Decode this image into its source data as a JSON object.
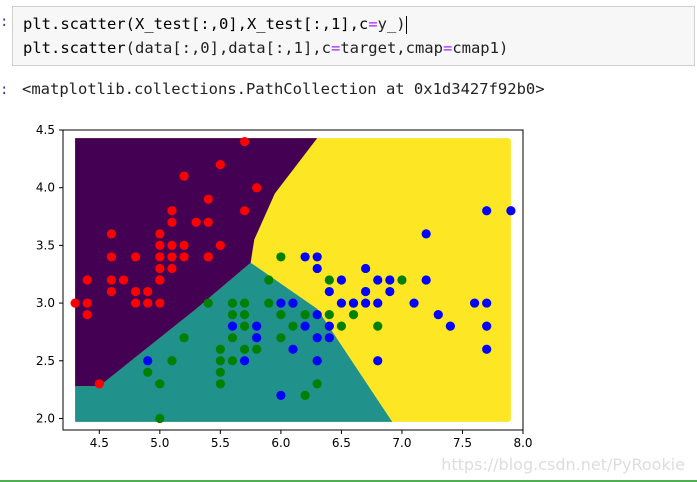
{
  "prompt_in": ":",
  "prompt_out": ":",
  "code": {
    "line1": {
      "fn": "plt.scatter",
      "args": "(X_test[:,0],X_test[:,1],c",
      "eq": "=",
      "tail": "y_)"
    },
    "line2": {
      "fn": "plt.scatter",
      "args": "(data[:,0],data[:,1],c",
      "eq": "=",
      "tail1": "target,cmap",
      "eq2": "=",
      "tail2": "cmap1)"
    }
  },
  "output_text": "<matplotlib.collections.PathCollection at 0x1d3427f92b0>",
  "watermark": "https://blog.csdn.net/PyRookie",
  "colors": {
    "region_purple": "#440154",
    "region_teal": "#21918c",
    "region_yellow": "#fde725",
    "class_red": "#ff0000",
    "class_green": "#008000",
    "class_blue": "#0000ff"
  },
  "chart_data": {
    "type": "scatter",
    "title": "",
    "xlabel": "",
    "ylabel": "",
    "xlim": [
      4.2,
      8.0
    ],
    "ylim": [
      1.9,
      4.5
    ],
    "xticks": [
      "4.5",
      "5.0",
      "5.5",
      "6.0",
      "6.5",
      "7.0",
      "7.5",
      "8.0"
    ],
    "yticks": [
      "2.0",
      "2.5",
      "3.0",
      "3.5",
      "4.0",
      "4.5"
    ],
    "grid": false,
    "background_regions": [
      {
        "class": 0,
        "color": "#440154",
        "label": "purple region (upper-left)"
      },
      {
        "class": 1,
        "color": "#21918c",
        "label": "teal region (lower-middle)"
      },
      {
        "class": 2,
        "color": "#fde725",
        "label": "yellow region (right)"
      }
    ],
    "series": [
      {
        "color": "#ff0000",
        "points": [
          [
            4.3,
            3.0
          ],
          [
            4.4,
            3.0
          ],
          [
            4.4,
            2.9
          ],
          [
            4.4,
            3.2
          ],
          [
            4.5,
            2.3
          ],
          [
            4.6,
            3.1
          ],
          [
            4.6,
            3.4
          ],
          [
            4.6,
            3.6
          ],
          [
            4.6,
            3.2
          ],
          [
            4.7,
            3.2
          ],
          [
            4.8,
            3.0
          ],
          [
            4.8,
            3.4
          ],
          [
            4.8,
            3.1
          ],
          [
            4.9,
            3.0
          ],
          [
            4.9,
            3.1
          ],
          [
            5.0,
            3.0
          ],
          [
            5.0,
            3.6
          ],
          [
            5.0,
            3.4
          ],
          [
            5.0,
            3.5
          ],
          [
            5.0,
            3.2
          ],
          [
            5.0,
            3.3
          ],
          [
            5.1,
            3.5
          ],
          [
            5.1,
            3.8
          ],
          [
            5.1,
            3.4
          ],
          [
            5.1,
            3.7
          ],
          [
            5.1,
            3.3
          ],
          [
            5.2,
            3.5
          ],
          [
            5.2,
            3.4
          ],
          [
            5.2,
            4.1
          ],
          [
            5.3,
            3.7
          ],
          [
            5.4,
            3.9
          ],
          [
            5.4,
            3.7
          ],
          [
            5.4,
            3.4
          ],
          [
            5.5,
            4.2
          ],
          [
            5.5,
            3.5
          ],
          [
            5.7,
            4.4
          ],
          [
            5.7,
            3.8
          ],
          [
            5.8,
            4.0
          ],
          [
            5.4,
            3.4
          ],
          [
            5.0,
            3.2
          ]
        ]
      },
      {
        "color": "#008000",
        "points": [
          [
            4.9,
            2.4
          ],
          [
            5.0,
            2.0
          ],
          [
            5.0,
            2.3
          ],
          [
            5.1,
            2.5
          ],
          [
            5.2,
            2.7
          ],
          [
            5.4,
            3.0
          ],
          [
            5.5,
            2.3
          ],
          [
            5.5,
            2.4
          ],
          [
            5.5,
            2.5
          ],
          [
            5.5,
            2.6
          ],
          [
            5.6,
            2.9
          ],
          [
            5.6,
            3.0
          ],
          [
            5.6,
            2.7
          ],
          [
            5.6,
            2.5
          ],
          [
            5.7,
            2.6
          ],
          [
            5.7,
            2.8
          ],
          [
            5.7,
            3.0
          ],
          [
            5.7,
            2.9
          ],
          [
            5.8,
            2.7
          ],
          [
            5.8,
            2.6
          ],
          [
            5.9,
            3.0
          ],
          [
            5.9,
            3.2
          ],
          [
            6.0,
            2.9
          ],
          [
            6.0,
            2.7
          ],
          [
            6.0,
            3.4
          ],
          [
            6.1,
            2.8
          ],
          [
            6.1,
            3.0
          ],
          [
            6.2,
            2.9
          ],
          [
            6.2,
            2.2
          ],
          [
            6.3,
            2.3
          ],
          [
            6.3,
            2.5
          ],
          [
            6.4,
            2.9
          ],
          [
            6.4,
            3.2
          ],
          [
            6.5,
            2.8
          ],
          [
            6.6,
            3.0
          ],
          [
            6.6,
            2.9
          ],
          [
            6.7,
            3.1
          ],
          [
            6.8,
            2.8
          ],
          [
            7.0,
            3.2
          ]
        ]
      },
      {
        "color": "#0000ff",
        "points": [
          [
            4.9,
            2.5
          ],
          [
            5.6,
            2.8
          ],
          [
            5.7,
            2.5
          ],
          [
            5.8,
            2.8
          ],
          [
            5.8,
            2.7
          ],
          [
            6.0,
            2.2
          ],
          [
            6.0,
            3.0
          ],
          [
            6.1,
            3.0
          ],
          [
            6.1,
            2.6
          ],
          [
            6.2,
            2.8
          ],
          [
            6.2,
            3.4
          ],
          [
            6.3,
            3.3
          ],
          [
            6.3,
            2.9
          ],
          [
            6.3,
            2.7
          ],
          [
            6.3,
            2.5
          ],
          [
            6.3,
            3.4
          ],
          [
            6.4,
            2.8
          ],
          [
            6.4,
            3.1
          ],
          [
            6.4,
            2.7
          ],
          [
            6.5,
            3.0
          ],
          [
            6.5,
            3.2
          ],
          [
            6.7,
            3.3
          ],
          [
            6.7,
            3.0
          ],
          [
            6.7,
            3.1
          ],
          [
            6.8,
            3.0
          ],
          [
            6.8,
            3.2
          ],
          [
            6.9,
            3.1
          ],
          [
            6.9,
            3.2
          ],
          [
            7.1,
            3.0
          ],
          [
            7.2,
            3.6
          ],
          [
            7.2,
            3.2
          ],
          [
            7.3,
            2.9
          ],
          [
            7.4,
            2.8
          ],
          [
            7.6,
            3.0
          ],
          [
            7.7,
            3.8
          ],
          [
            7.7,
            3.0
          ],
          [
            7.7,
            2.8
          ],
          [
            7.7,
            2.6
          ],
          [
            7.9,
            3.8
          ],
          [
            6.8,
            2.5
          ],
          [
            6.6,
            3.0
          ]
        ]
      }
    ]
  }
}
